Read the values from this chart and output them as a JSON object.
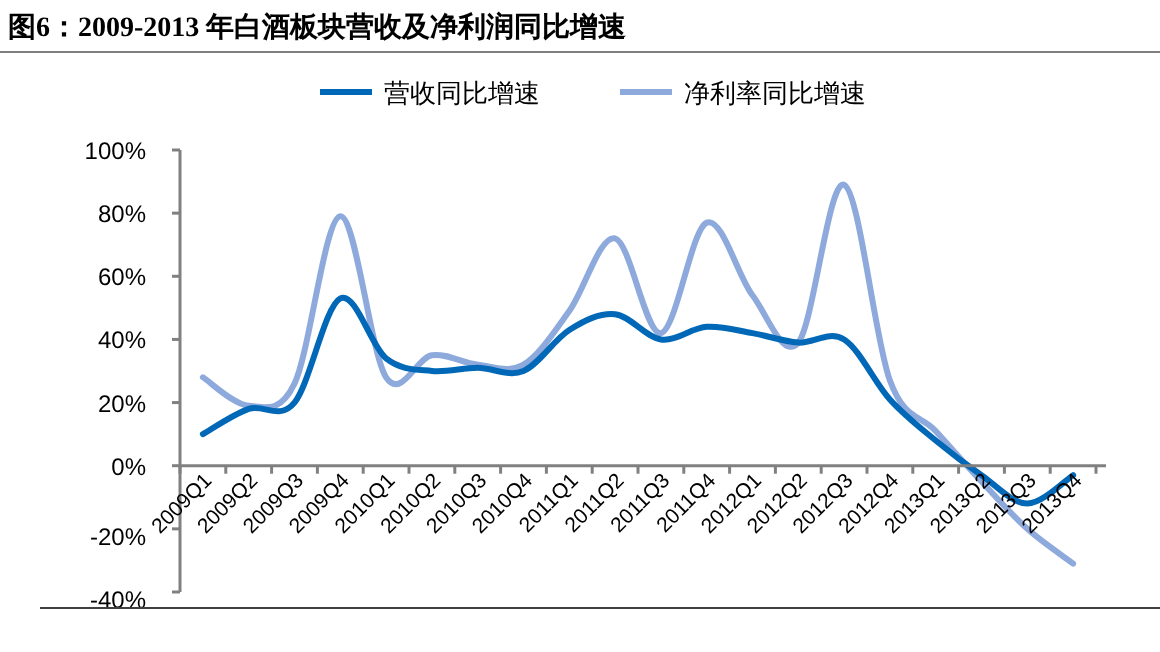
{
  "chart_data": {
    "type": "line",
    "title": "图6：2009-2013 年白酒板块营收及净利润同比增速",
    "categories": [
      "2009Q1",
      "2009Q2",
      "2009Q3",
      "2009Q4",
      "2010Q1",
      "2010Q2",
      "2010Q3",
      "2010Q4",
      "2011Q1",
      "2011Q2",
      "2011Q3",
      "2011Q4",
      "2012Q1",
      "2012Q2",
      "2012Q3",
      "2012Q4",
      "2013Q1",
      "2013Q2",
      "2013Q3",
      "2013Q4"
    ],
    "series": [
      {
        "name": "营收同比增速",
        "color": "#0068b7",
        "values": [
          10,
          18,
          20,
          53,
          34,
          30,
          31,
          30,
          43,
          48,
          40,
          44,
          42,
          39,
          40,
          21,
          8,
          -3,
          -12,
          -3
        ]
      },
      {
        "name": "净利率同比增速",
        "color": "#8eaadc",
        "values": [
          28,
          19,
          26,
          79,
          28,
          35,
          32,
          32,
          49,
          72,
          42,
          77,
          54,
          39,
          89,
          27,
          11,
          -5,
          -20,
          -31
        ]
      }
    ],
    "ylim": [
      -40,
      100
    ],
    "yticks": [
      {
        "value": -40,
        "label": "-40%"
      },
      {
        "value": -20,
        "label": "-20%"
      },
      {
        "value": 0,
        "label": "0%"
      },
      {
        "value": 20,
        "label": "20%"
      },
      {
        "value": 40,
        "label": "40%"
      },
      {
        "value": 60,
        "label": "60%"
      },
      {
        "value": 80,
        "label": "80%"
      },
      {
        "value": 100,
        "label": "100%"
      }
    ],
    "legend": "top",
    "grid": false,
    "marker": "none",
    "line_style": "solid"
  }
}
